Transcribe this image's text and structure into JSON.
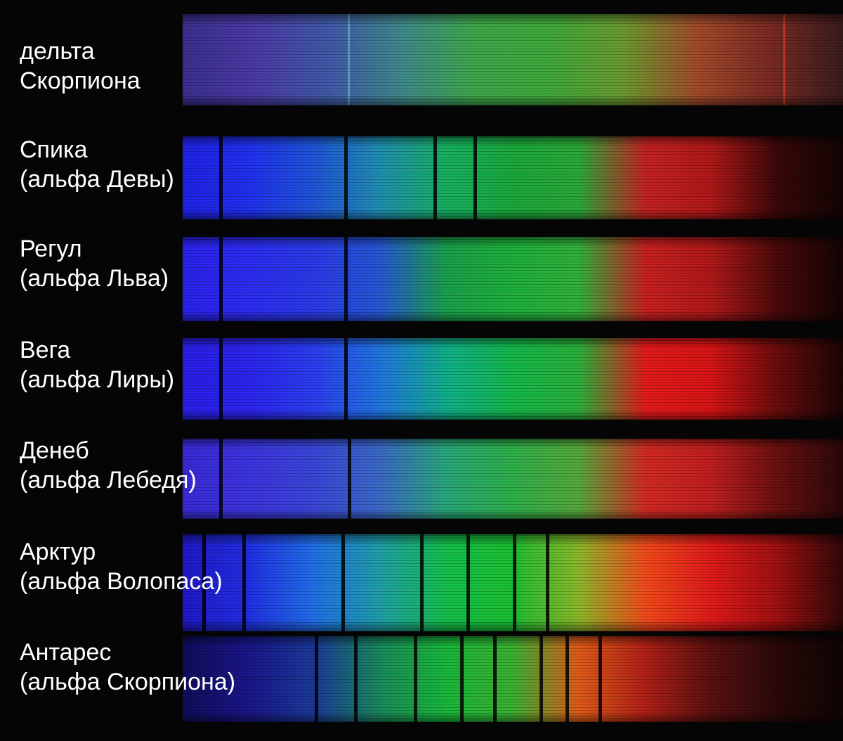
{
  "stars": [
    {
      "name": "дельта",
      "subname": "Скорпиона",
      "colors": [
        "#3a2f8f",
        "#4b3aa6",
        "#3f5aa8",
        "#3f8a8a",
        "#3da84a",
        "#3fa93a",
        "#6a9a2e",
        "#a24a2a",
        "#7a2a22",
        "#3a1c1c"
      ],
      "absorption": [],
      "emission": [
        0.25,
        0.91
      ]
    },
    {
      "name": "Спика",
      "subname": "(альфа Девы)",
      "colors": [
        "#1f22e6",
        "#2030f0",
        "#1e55d8",
        "#1f8fb0",
        "#16b060",
        "#1aa83a",
        "#2aa838",
        "#c42222",
        "#b01818",
        "#3a0808",
        "#120404"
      ],
      "absorption": [
        0.055,
        0.245,
        0.38,
        0.44
      ],
      "emission": []
    },
    {
      "name": "Регул",
      "subname": "(альфа Льва)",
      "colors": [
        "#2a22ee",
        "#2c2cf2",
        "#2a3ae8",
        "#2458d4",
        "#1aa04a",
        "#1eb03a",
        "#30b03a",
        "#c82020",
        "#b01818",
        "#4a0a0a",
        "#140404"
      ],
      "absorption": [
        0.055,
        0.245
      ],
      "emission": []
    },
    {
      "name": "Вега",
      "subname": "(альфа Лиры)",
      "colors": [
        "#2a1ee8",
        "#2c24f0",
        "#2a3ef0",
        "#1f76e0",
        "#10b08a",
        "#15b84a",
        "#2ab03a",
        "#e21a1a",
        "#d81414",
        "#6a0c0c",
        "#1a0505"
      ],
      "absorption": [
        0.055,
        0.245
      ],
      "emission": []
    },
    {
      "name": "Денеб",
      "subname": "(альфа Лебедя)",
      "colors": [
        "#3a2ad8",
        "#3c34e0",
        "#3a46d8",
        "#3a6ac8",
        "#28a878",
        "#2eb04a",
        "#56a83a",
        "#d22a22",
        "#c01e1e",
        "#6a1010",
        "#2a0808"
      ],
      "absorption": [
        0.055,
        0.25
      ],
      "emission": []
    },
    {
      "name": "Арктур",
      "subname": "(альфа Волопаса)",
      "colors": [
        "#2018c8",
        "#2030e6",
        "#2070e8",
        "#1fa0a8",
        "#14c04a",
        "#1cc030",
        "#8cb82a",
        "#f24a1a",
        "#e01a1a",
        "#a01010",
        "#300808"
      ],
      "absorption": [
        0.03,
        0.09,
        0.24,
        0.36,
        0.43,
        0.5,
        0.55
      ],
      "emission": []
    },
    {
      "name": "Антарес",
      "subname": "(альфа Скорпиона)",
      "colors": [
        "#100c5a",
        "#1a168a",
        "#1a3a9a",
        "#1a8a5a",
        "#18b83a",
        "#3ab030",
        "#e05a18",
        "#b02016",
        "#5a1010",
        "#2a0808",
        "#100404"
      ],
      "absorption": [
        0.2,
        0.26,
        0.35,
        0.42,
        0.47,
        0.54,
        0.58,
        0.63
      ],
      "emission": []
    }
  ]
}
